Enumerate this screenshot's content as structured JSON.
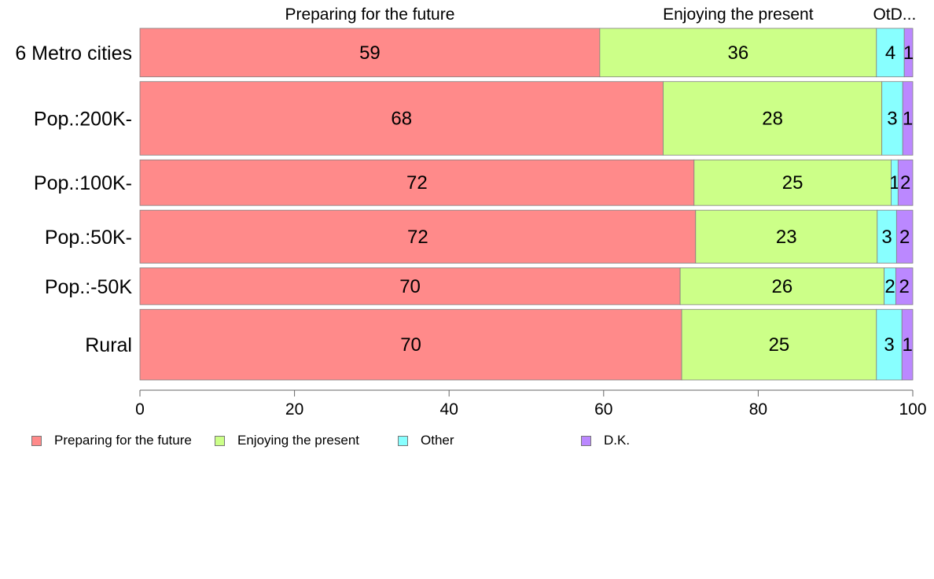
{
  "chart_data": {
    "type": "bar",
    "orientation": "horizontal",
    "stacked": true,
    "categories": [
      "6 Metro cities",
      "Pop.:200K-",
      "Pop.:100K-",
      "Pop.:50K-",
      "Pop.:-50K",
      "Rural"
    ],
    "series": [
      {
        "name": "Preparing for the future",
        "color": "#FF8A8A",
        "values": [
          59.5,
          67.7,
          71.7,
          71.9,
          69.9,
          70.1
        ]
      },
      {
        "name": "Enjoying the present",
        "color": "#CCFF88",
        "values": [
          35.8,
          28.3,
          25.5,
          23.5,
          26.4,
          25.2
        ]
      },
      {
        "name": "Other",
        "color": "#88FFFF",
        "values": [
          3.6,
          2.7,
          0.9,
          2.5,
          1.5,
          3.3
        ]
      },
      {
        "name": "D.K.",
        "color": "#BB88FF",
        "values": [
          1.1,
          1.3,
          1.9,
          2.1,
          2.2,
          1.4
        ]
      }
    ],
    "data_labels": [
      [
        "59",
        "36",
        "4",
        "1"
      ],
      [
        "68",
        "28",
        "3",
        "1"
      ],
      [
        "72",
        "25",
        "1",
        "2"
      ],
      [
        "72",
        "23",
        "3",
        "2"
      ],
      [
        "70",
        "26",
        "2",
        "2"
      ],
      [
        "70",
        "25",
        "3",
        "1"
      ]
    ],
    "row_weights": [
      0.66,
      1.0,
      0.62,
      0.72,
      0.5,
      0.96
    ],
    "top_labels": [
      "Preparing for the future",
      "Enjoying the present",
      "OtD..."
    ],
    "x_ticks": [
      "0",
      "20",
      "40",
      "60",
      "80",
      "100"
    ],
    "xlim": [
      0,
      100
    ],
    "grid": false,
    "legend_position": "bottom"
  },
  "legend": [
    {
      "label": "Preparing for the future",
      "color": "#FF8A8A"
    },
    {
      "label": "Enjoying the present",
      "color": "#CCFF88"
    },
    {
      "label": "Other",
      "color": "#88FFFF"
    },
    {
      "label": "D.K.",
      "color": "#BB88FF"
    }
  ]
}
